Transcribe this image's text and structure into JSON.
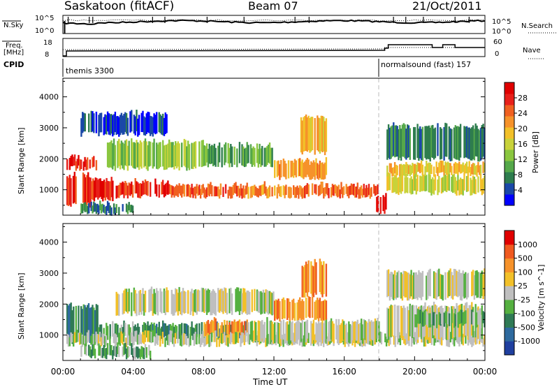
{
  "header": {
    "title": "Saskatoon (fitACF)",
    "beam": "Beam 07",
    "date": "21/Oct/2011"
  },
  "top_panels": {
    "nsky_label": "N.Sky",
    "nsky_ticks": [
      "10^5",
      "10^0"
    ],
    "nsearch_label": "N.Search",
    "nsearch_ticks": [
      "10^5",
      "10^0"
    ],
    "freq_label_line1": "Freq.",
    "freq_label_line2": "[MHz]",
    "freq_ticks": [
      "18",
      "8"
    ],
    "nave_label": "Nave",
    "nave_ticks": [
      "60",
      "0"
    ],
    "cpid_label": "CPID",
    "cpid_segments": [
      {
        "name": "themis 3300",
        "start_hour": 0,
        "end_hour": 18.3
      },
      {
        "name": "normalsound (fast) 157",
        "start_hour": 18.3,
        "end_hour": 24
      }
    ]
  },
  "time_axis": {
    "label": "Time UT",
    "ticks": [
      "00:00",
      "04:00",
      "08:00",
      "12:00",
      "16:00",
      "20:00",
      "00:00"
    ]
  },
  "chart_data": [
    {
      "type": "heatmap",
      "name": "power",
      "ylabel": "Slant Range [km]",
      "yticks": [
        1000,
        2000,
        3000,
        4000
      ],
      "ylim": [
        180,
        4600
      ],
      "xlim_hours": [
        0,
        24
      ],
      "colorbar_label": "Power [dB]",
      "colorbar_ticks": [
        "28",
        "24",
        "20",
        "16",
        "12",
        "8",
        "4"
      ],
      "colors": [
        "#0000ff",
        "#1a48a8",
        "#2e7d4e",
        "#55a84a",
        "#8ac63f",
        "#c8d23a",
        "#f2c029",
        "#f6922a",
        "#f06020",
        "#e8201a",
        "#e00000"
      ],
      "regions": [
        {
          "t0": 0.2,
          "t1": 1.6,
          "r0": 500,
          "r1": 1500,
          "level": 9
        },
        {
          "t0": 1.6,
          "t1": 3.0,
          "r0": 700,
          "r1": 1400,
          "level": 9
        },
        {
          "t0": 3.0,
          "t1": 6.0,
          "r0": 800,
          "r1": 1300,
          "level": 9
        },
        {
          "t0": 6.0,
          "t1": 10.5,
          "r0": 800,
          "r1": 1200,
          "level": 8
        },
        {
          "t0": 10.5,
          "t1": 13.5,
          "r0": 800,
          "r1": 1200,
          "level": 7
        },
        {
          "t0": 13.5,
          "t1": 18.0,
          "r0": 800,
          "r1": 1200,
          "level": 8
        },
        {
          "t0": 17.8,
          "t1": 18.4,
          "r0": 300,
          "r1": 900,
          "level": 10
        },
        {
          "t0": 18.4,
          "t1": 24.0,
          "r0": 900,
          "r1": 1500,
          "level": 5
        },
        {
          "t0": 18.4,
          "t1": 24.0,
          "r0": 1500,
          "r1": 1900,
          "level": 6
        },
        {
          "t0": 2.5,
          "t1": 8.0,
          "r0": 1700,
          "r1": 2600,
          "level": 4
        },
        {
          "t0": 8.0,
          "t1": 12.0,
          "r0": 1800,
          "r1": 2500,
          "level": 3
        },
        {
          "t0": 12.0,
          "t1": 15.0,
          "r0": 1400,
          "r1": 2000,
          "level": 7
        },
        {
          "t0": 13.5,
          "t1": 15.0,
          "r0": 2200,
          "r1": 3400,
          "level": 6
        },
        {
          "t0": 18.4,
          "t1": 24.0,
          "r0": 2000,
          "r1": 3100,
          "level": 2
        },
        {
          "t0": 1.0,
          "t1": 6.0,
          "r0": 2800,
          "r1": 3500,
          "level": 1
        },
        {
          "t0": 0.2,
          "t1": 2.0,
          "r0": 1700,
          "r1": 2100,
          "level": 9
        },
        {
          "t0": 1.0,
          "t1": 4.0,
          "r0": 250,
          "r1": 600,
          "level": 2
        }
      ]
    },
    {
      "type": "heatmap",
      "name": "velocity",
      "ylabel": "Slant Range [km]",
      "yticks": [
        1000,
        2000,
        3000,
        4000
      ],
      "ylim": [
        180,
        4600
      ],
      "xlim_hours": [
        0,
        24
      ],
      "colorbar_label": "Velocity [m s^-1]",
      "colorbar_ticks": [
        "1000",
        "500",
        "100",
        "25",
        "-25",
        "-100",
        "-500",
        "-1000"
      ],
      "colors": [
        "#1f3f9f",
        "#2e6a9e",
        "#2f7a55",
        "#55b040",
        "#bfbfbf",
        "#f2c029",
        "#f6922a",
        "#f05a20",
        "#e00000"
      ],
      "regions": [
        {
          "t0": 0.2,
          "t1": 2.0,
          "r0": 800,
          "r1": 2000,
          "level": 2
        },
        {
          "t0": 2.0,
          "t1": 4.0,
          "r0": 900,
          "r1": 1400,
          "level": 3
        },
        {
          "t0": 4.0,
          "t1": 10.5,
          "r0": 900,
          "r1": 1400,
          "level": 2
        },
        {
          "t0": 8.0,
          "t1": 10.5,
          "r0": 1000,
          "r1": 1500,
          "level": 6
        },
        {
          "t0": 0.2,
          "t1": 24.0,
          "r0": 700,
          "r1": 1100,
          "level": 4
        },
        {
          "t0": 10.5,
          "t1": 18.0,
          "r0": 800,
          "r1": 1500,
          "level": 4
        },
        {
          "t0": 18.4,
          "t1": 24.0,
          "r0": 900,
          "r1": 2000,
          "level": 4
        },
        {
          "t0": 3.0,
          "t1": 12.0,
          "r0": 1700,
          "r1": 2500,
          "level": 4
        },
        {
          "t0": 12.0,
          "t1": 15.0,
          "r0": 1500,
          "r1": 2200,
          "level": 6
        },
        {
          "t0": 13.5,
          "t1": 15.0,
          "r0": 2300,
          "r1": 3400,
          "level": 6
        },
        {
          "t0": 18.4,
          "t1": 24.0,
          "r0": 2200,
          "r1": 3100,
          "level": 4
        },
        {
          "t0": 20.0,
          "t1": 24.0,
          "r0": 1300,
          "r1": 1800,
          "level": 3
        },
        {
          "t0": 1.0,
          "t1": 5.0,
          "r0": 300,
          "r1": 700,
          "level": 3
        }
      ]
    }
  ]
}
